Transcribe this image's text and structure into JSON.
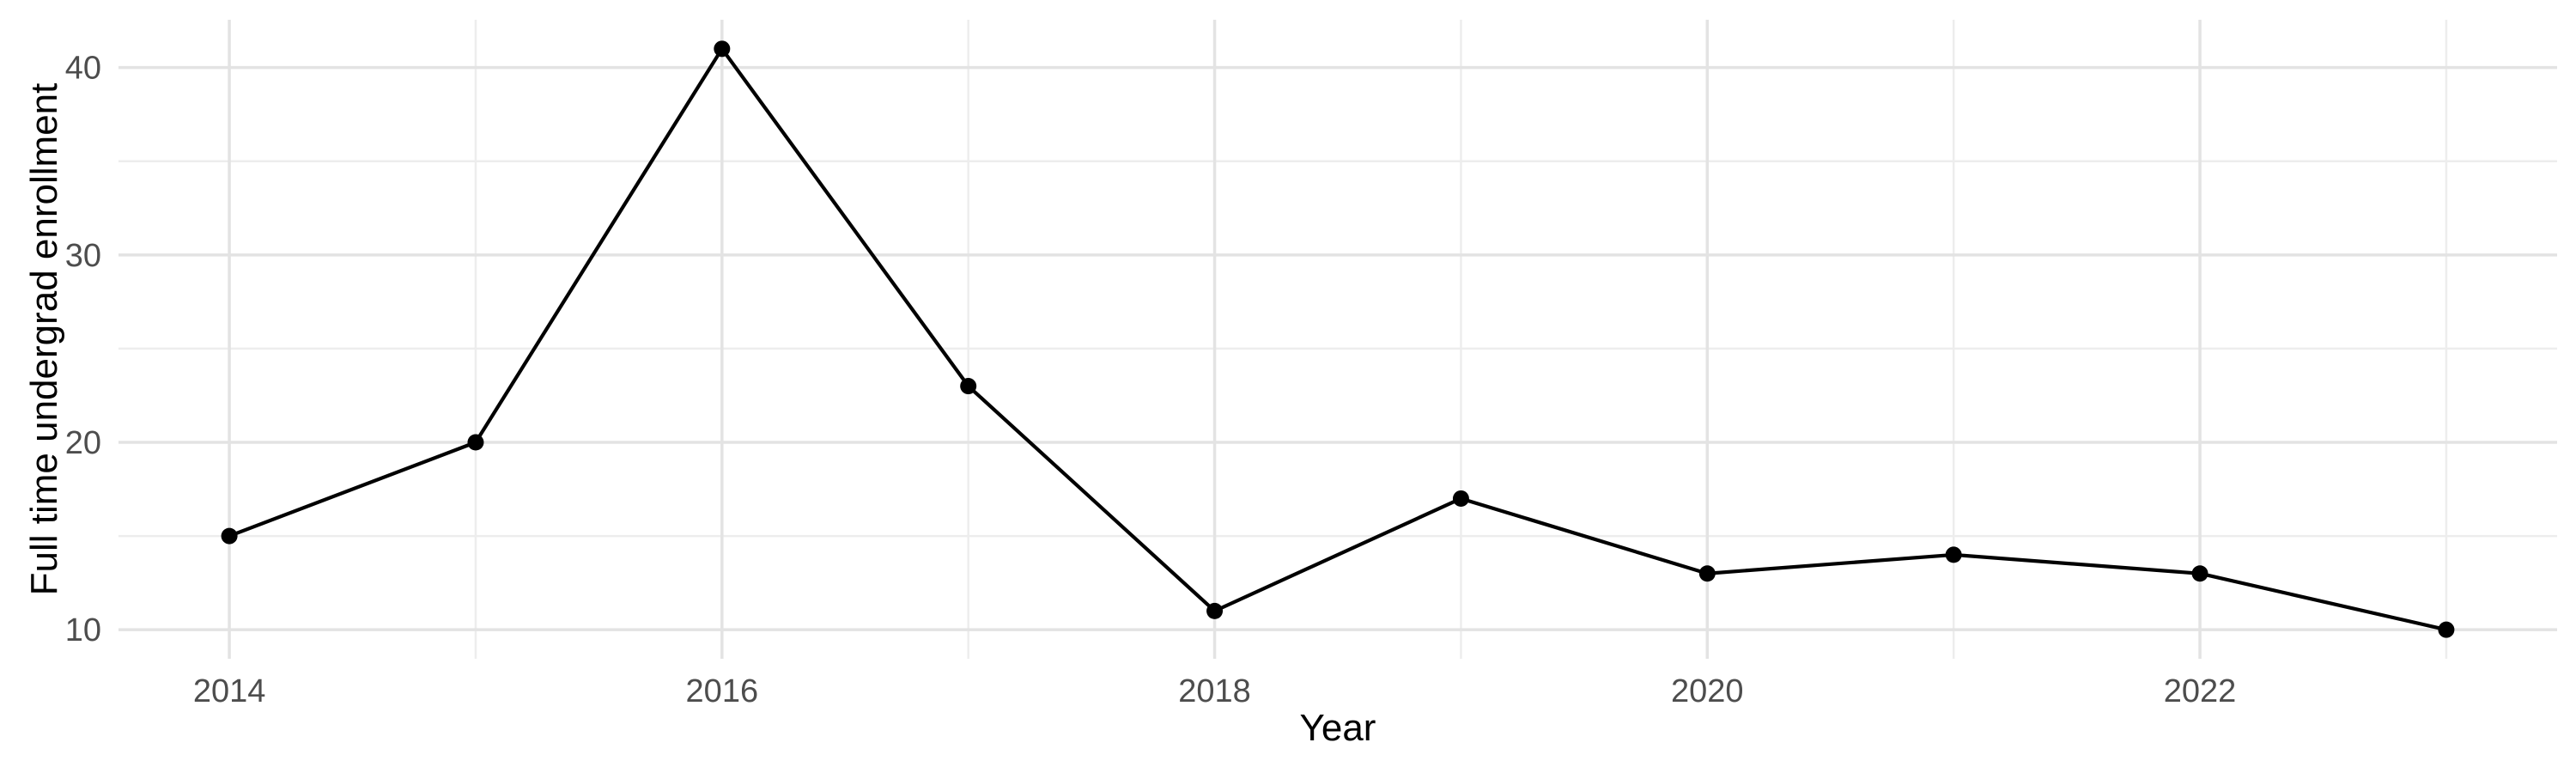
{
  "chart_data": {
    "type": "line",
    "title": "",
    "xlabel": "Year",
    "ylabel": "Full time undergrad enrollment",
    "x": [
      2014,
      2015,
      2016,
      2017,
      2018,
      2019,
      2020,
      2021,
      2022,
      2023
    ],
    "series": [
      {
        "name": "Full time undergrad enrollment",
        "values": [
          15,
          20,
          41,
          23,
          11,
          17,
          13,
          14,
          13,
          10
        ]
      }
    ],
    "xlim": [
      2013.55,
      2023.45
    ],
    "ylim": [
      8.45,
      42.55
    ],
    "x_major_ticks": [
      2014,
      2016,
      2018,
      2020,
      2022
    ],
    "x_minor_gridlines": [
      2015,
      2017,
      2019,
      2021,
      2023
    ],
    "y_major_ticks": [
      10,
      20,
      30,
      40
    ],
    "y_minor_gridlines": [
      15,
      25,
      35
    ],
    "grid": true,
    "legend": false,
    "style": "ggplot-minimal",
    "colors": {
      "line": "#000000",
      "point": "#000000",
      "grid_major": "#e3e3e3",
      "grid_minor": "#ededed",
      "tick_label": "#4d4d4d",
      "axis_title": "#000000",
      "background": "#ffffff"
    }
  }
}
